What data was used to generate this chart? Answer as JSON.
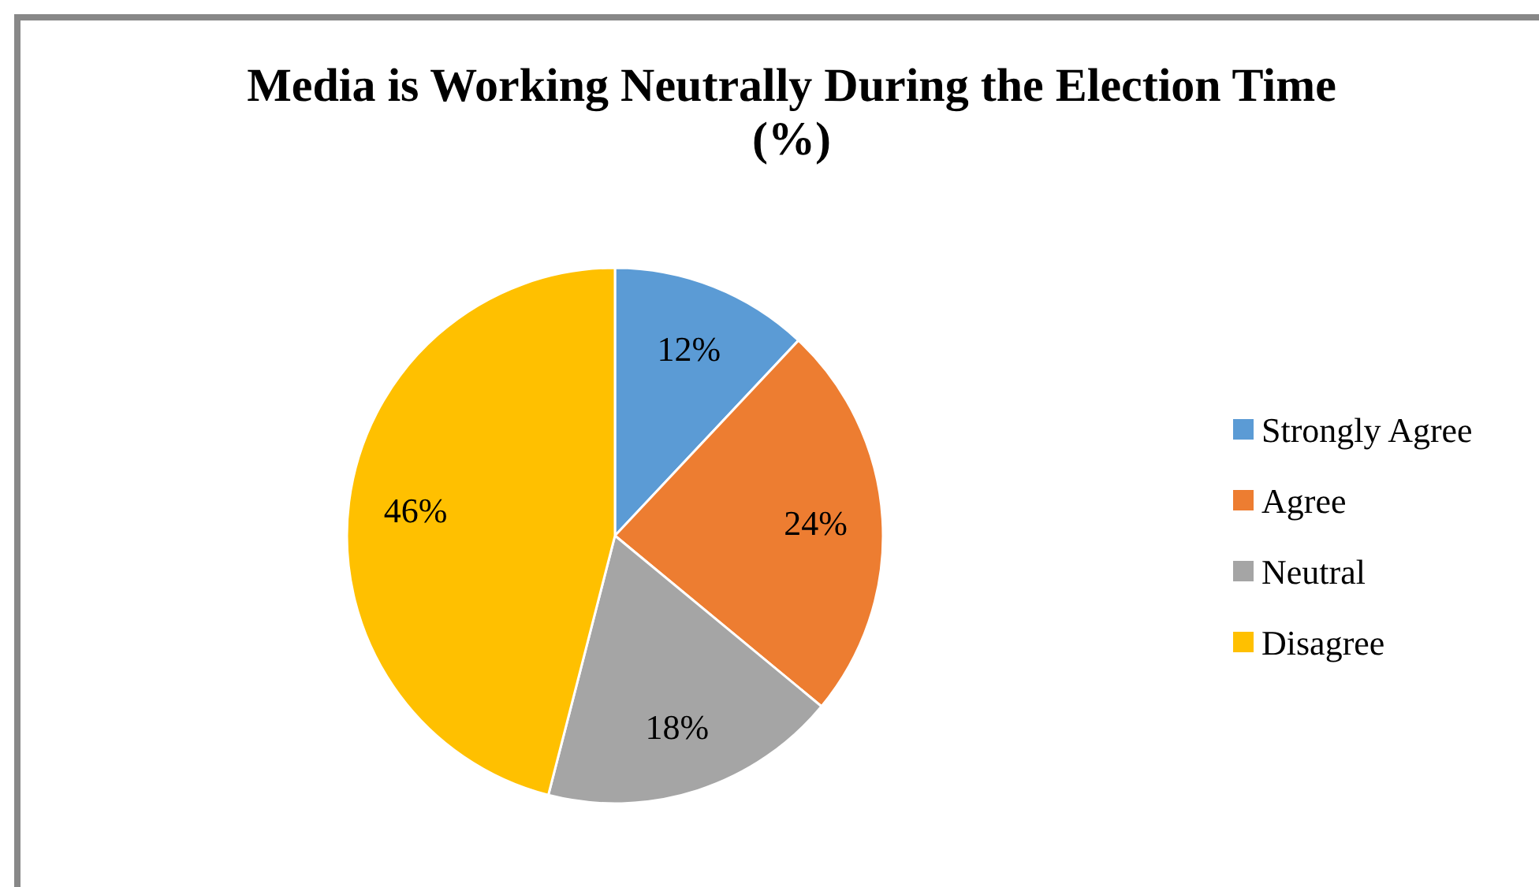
{
  "chart_data": {
    "type": "pie",
    "title": "Media is Working Neutrally During the Election Time (%)",
    "categories": [
      "Strongly Agree",
      "Agree",
      "Neutral",
      "Disagree"
    ],
    "values": [
      12,
      24,
      18,
      46
    ],
    "colors": [
      "#5b9bd5",
      "#ed7d31",
      "#a5a5a5",
      "#ffc000"
    ],
    "value_labels": [
      "12%",
      "24%",
      "18%",
      "46%"
    ],
    "legend": "right"
  }
}
